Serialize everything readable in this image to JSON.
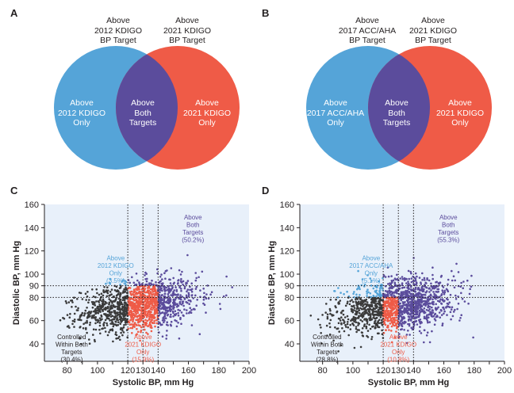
{
  "colors": {
    "blue": "#55a4d8",
    "red": "#ef5b47",
    "purple": "#5b4c9c",
    "gray": "#3a3a3a",
    "plot_bg": "#e8f0fa"
  },
  "panels": {
    "a": {
      "letter": "A",
      "left_label": "Above\n2012 KDIGO\nBP Target",
      "right_label": "Above\n2021 KDIGO\nBP Target",
      "left_only": "Above\n2012 KDIGO\nOnly",
      "both": "Above\nBoth\nTargets",
      "right_only": "Above\n2021 KDIGO\nOnly"
    },
    "b": {
      "letter": "B",
      "left_label": "Above\n2017 ACC/AHA\nBP Target",
      "right_label": "Above\n2021 KDIGO\nBP Target",
      "left_only": "Above\n2017 ACC/AHA\nOnly",
      "both": "Above\nBoth\nTargets",
      "right_only": "Above\n2021 KDIGO\nOnly"
    },
    "c": {
      "letter": "C"
    },
    "d": {
      "letter": "D"
    }
  },
  "chart_data": [
    {
      "type": "scatter",
      "panel": "C",
      "xlabel": "Systolic BP, mm Hg",
      "ylabel": "Diastolic BP, mm Hg",
      "xlim": [
        65,
        200
      ],
      "ylim": [
        25,
        160
      ],
      "xticks": [
        80,
        90,
        100,
        110,
        120,
        130,
        140,
        150,
        160,
        170,
        180,
        190,
        200
      ],
      "xtick_labels": [
        "80",
        "",
        "100",
        "",
        "120",
        "130",
        "140",
        "",
        "160",
        "",
        "180",
        "",
        "200"
      ],
      "yticks": [
        40,
        60,
        80,
        90,
        100,
        120,
        140,
        160
      ],
      "thresholds": {
        "sbp": [
          120,
          130,
          140
        ],
        "dbp": [
          80,
          90
        ]
      },
      "groups": {
        "controlled": {
          "lines": [
            "Controlled",
            "Within Both",
            "Targets",
            "(30.4%)"
          ],
          "percent": 30.4
        },
        "above_first_only": {
          "lines": [
            "Above",
            "2012 KDIGO",
            "Only",
            "(3.5%)"
          ],
          "percent": 3.5
        },
        "above_second_only": {
          "lines": [
            "Above",
            "2021 KDIGO",
            "Only",
            "(15.9%)"
          ],
          "percent": 15.9
        },
        "above_both": {
          "lines": [
            "Above",
            "Both",
            "Targets",
            "(50.2%)"
          ],
          "percent": 50.2
        }
      }
    },
    {
      "type": "scatter",
      "panel": "D",
      "xlabel": "Systolic BP, mm Hg",
      "ylabel": "Diastolic BP, mm Hg",
      "xlim": [
        65,
        200
      ],
      "ylim": [
        25,
        160
      ],
      "xticks": [
        80,
        90,
        100,
        110,
        120,
        130,
        140,
        150,
        160,
        170,
        180,
        190,
        200
      ],
      "xtick_labels": [
        "80",
        "",
        "100",
        "",
        "120",
        "130",
        "140",
        "",
        "160",
        "",
        "180",
        "",
        "200"
      ],
      "yticks": [
        40,
        60,
        80,
        90,
        100,
        120,
        140,
        160
      ],
      "thresholds": {
        "sbp": [
          120,
          130,
          140
        ],
        "dbp": [
          80,
          90
        ]
      },
      "groups": {
        "controlled": {
          "lines": [
            "Controlled",
            "Within Both",
            "Targets",
            "(28.8%)"
          ],
          "percent": 28.8
        },
        "above_first_only": {
          "lines": [
            "Above",
            "2017 ACC/AHA",
            "Only",
            "(5.1%)"
          ],
          "percent": 5.1
        },
        "above_second_only": {
          "lines": [
            "Above",
            "2021 KDIGO",
            "Only",
            "(10.8%)"
          ],
          "percent": 10.8
        },
        "above_both": {
          "lines": [
            "Above",
            "Both",
            "Targets",
            "(55.3%)"
          ],
          "percent": 55.3
        }
      }
    }
  ]
}
